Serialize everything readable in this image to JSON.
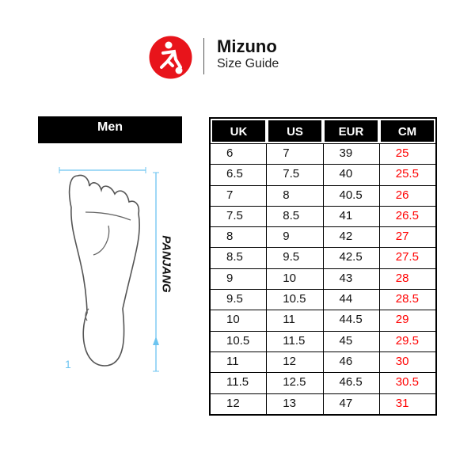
{
  "header": {
    "brand": "Mizuno",
    "subtitle": "Size Guide",
    "logo_color": "#e8141b"
  },
  "gender_label": "Men",
  "diagram": {
    "length_label": "PANJANG",
    "marker": "1",
    "measure_color": "#6cc4f0"
  },
  "table": {
    "columns": [
      "UK",
      "US",
      "EUR",
      "CM"
    ],
    "rows": [
      [
        "6",
        "7",
        "39",
        "25"
      ],
      [
        "6.5",
        "7.5",
        "40",
        "25.5"
      ],
      [
        "7",
        "8",
        "40.5",
        "26"
      ],
      [
        "7.5",
        "8.5",
        "41",
        "26.5"
      ],
      [
        "8",
        "9",
        "42",
        "27"
      ],
      [
        "8.5",
        "9.5",
        "42.5",
        "27.5"
      ],
      [
        "9",
        "10",
        "43",
        "28"
      ],
      [
        "9.5",
        "10.5",
        "44",
        "28.5"
      ],
      [
        "10",
        "11",
        "44.5",
        "29"
      ],
      [
        "10.5",
        "11.5",
        "45",
        "29.5"
      ],
      [
        "11",
        "12",
        "46",
        "30"
      ],
      [
        "11.5",
        "12.5",
        "46.5",
        "30.5"
      ],
      [
        "12",
        "13",
        "47",
        "31"
      ]
    ],
    "cm_color": "#ff0000"
  }
}
